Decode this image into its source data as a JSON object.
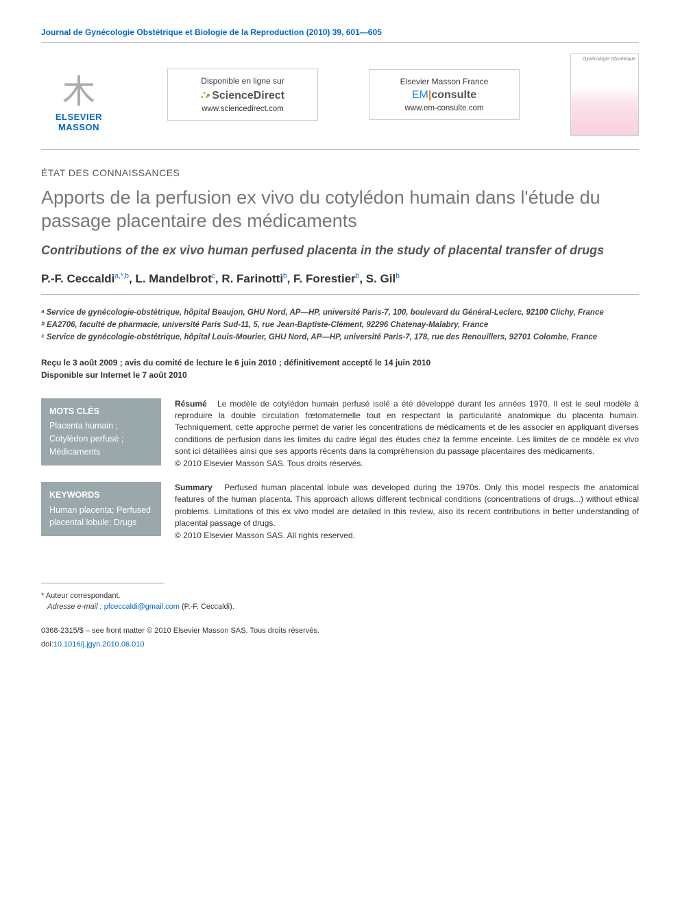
{
  "journal_ref": "Journal de Gynécologie Obstétrique et Biologie de la Reproduction (2010) 39, 601—605",
  "publisher": {
    "name": "ELSEVIER",
    "sub": "MASSON"
  },
  "link_boxes": [
    {
      "top": "Disponible en ligne sur",
      "brand_html": "sd",
      "brand_text": "ScienceDirect",
      "url": "www.sciencedirect.com"
    },
    {
      "top": "Elsevier Masson France",
      "brand_html": "em",
      "brand_text": "EMconsulte",
      "url": "www.em-consulte.com"
    }
  ],
  "cover_title": "Gynécologie Obstétrique",
  "article_type": "ÉTAT DES CONNAISSANCES",
  "title": "Apports de la perfusion ex vivo du cotylédon humain dans l'étude du passage placentaire des médicaments",
  "subtitle": "Contributions of the ex vivo human perfused placenta in the study of placental transfer of drugs",
  "authors_html": "P.-F. Ceccaldi<sup>a,*,b</sup>, L. Mandelbrot<sup>c</sup>, R. Farinotti<sup>b</sup>, F. Forestier<sup>b</sup>, S. Gil<sup>b</sup>",
  "affiliations": [
    "ᵃ Service de gynécologie-obstétrique, hôpital Beaujon, GHU Nord, AP—HP, université Paris-7, 100, boulevard du Général-Leclerc, 92100 Clichy, France",
    "ᵇ EA2706, faculté de pharmacie, université Paris Sud-11, 5, rue Jean-Baptiste-Clément, 92296 Chatenay-Malabry, France",
    "ᶜ Service de gynécologie-obstétrique, hôpital Louis-Mourier, GHU Nord, AP—HP, université Paris-7, 178, rue des Renouillers, 92701 Colombe, France"
  ],
  "dates_line1": "Reçu le 3 août 2009 ; avis du comité de lecture le 6 juin 2010 ; définitivement accepté le 14 juin 2010",
  "dates_line2": "Disponible sur Internet le 7 août 2010",
  "abstracts": [
    {
      "kw_head": "MOTS CLÉS",
      "kw_body": "Placenta humain ; Cotylédon perfusé ; Médicaments",
      "abs_head": "Résumé",
      "abs_body": "Le modèle de cotylédon humain perfusé isolé a été développé durant les années 1970. Il est le seul modèle à reproduire la double circulation fœtomaternelle tout en respectant la particularité anatomique du placenta humain. Techniquement, cette approche permet de varier les concentrations de médicaments et de les associer en appliquant diverses conditions de perfusion dans les limites du cadre légal des études chez la femme enceinte. Les limites de ce modèle ex vivo sont ici détaillées ainsi que ses apports récents dans la compréhension du passage placentaires des médicaments.",
      "copyright": "© 2010 Elsevier Masson SAS. Tous droits réservés."
    },
    {
      "kw_head": "KEYWORDS",
      "kw_body": "Human placenta; Perfused placental lobule; Drugs",
      "abs_head": "Summary",
      "abs_body": "Perfused human placental lobule was developed during the 1970s. Only this model respects the anatomical features of the human placenta. This approach allows different technical conditions (concentrations of drugs...) without ethical problems. Limitations of this ex vivo model are detailed in this review, also its recent contributions in better understanding of placental passage of drugs.",
      "copyright": "© 2010 Elsevier Masson SAS. All rights reserved."
    }
  ],
  "footnote_corr": "* Auteur correspondant.",
  "footnote_email_label": "Adresse e-mail :",
  "footnote_email": "pfceccaldi@gmail.com",
  "footnote_email_who": "(P.-F. Ceccaldi).",
  "footer_issn": "0368-2315/$ – see front matter © 2010 Elsevier Masson SAS. Tous droits réservés.",
  "footer_doi_label": "doi:",
  "footer_doi": "10.1016/j.jgyn.2010.06.010",
  "colors": {
    "link": "#0066cc",
    "title_gray": "#777777",
    "kw_bg": "#9aa8ab",
    "sd_green": "#7cb342",
    "em_blue": "#1e88e5",
    "em_orange": "#f57c00"
  }
}
